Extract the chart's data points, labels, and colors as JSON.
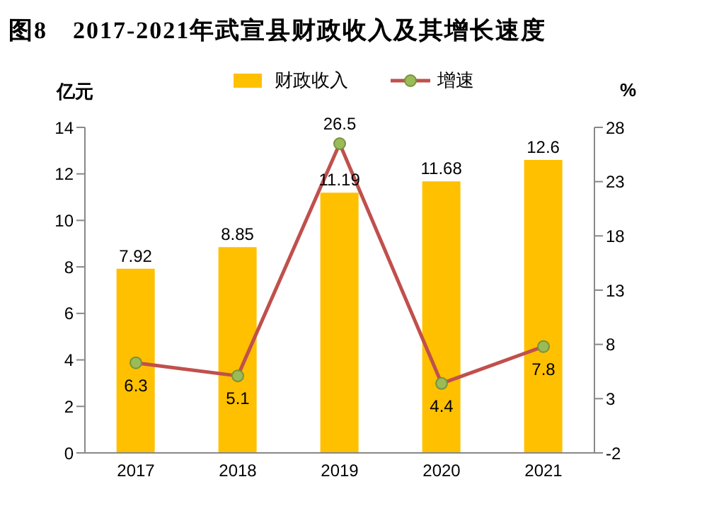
{
  "chart_data": {
    "type": "bar",
    "title": "图8　2017-2021年武宣县财政收入及其增长速度",
    "ylabel": "亿元",
    "y2label": "%",
    "categories": [
      "2017",
      "2018",
      "2019",
      "2020",
      "2021"
    ],
    "series": [
      {
        "name": "财政收入",
        "color": "#ffc000",
        "values": [
          7.92,
          8.85,
          11.19,
          11.68,
          12.6
        ]
      },
      {
        "name": "增速",
        "type": "line",
        "axis": "y2",
        "color": "#c0504d",
        "values": [
          6.3,
          5.1,
          26.5,
          4.4,
          7.8
        ]
      }
    ],
    "ylim": [
      0,
      14
    ],
    "yticks": [
      0,
      2,
      4,
      6,
      8,
      10,
      12,
      14
    ],
    "y2lim": [
      -2,
      28
    ],
    "y2ticks": [
      -2,
      3,
      8,
      13,
      18,
      23,
      28
    ],
    "data_labels": true,
    "legend": "top",
    "marker": "circle",
    "grid": false
  }
}
